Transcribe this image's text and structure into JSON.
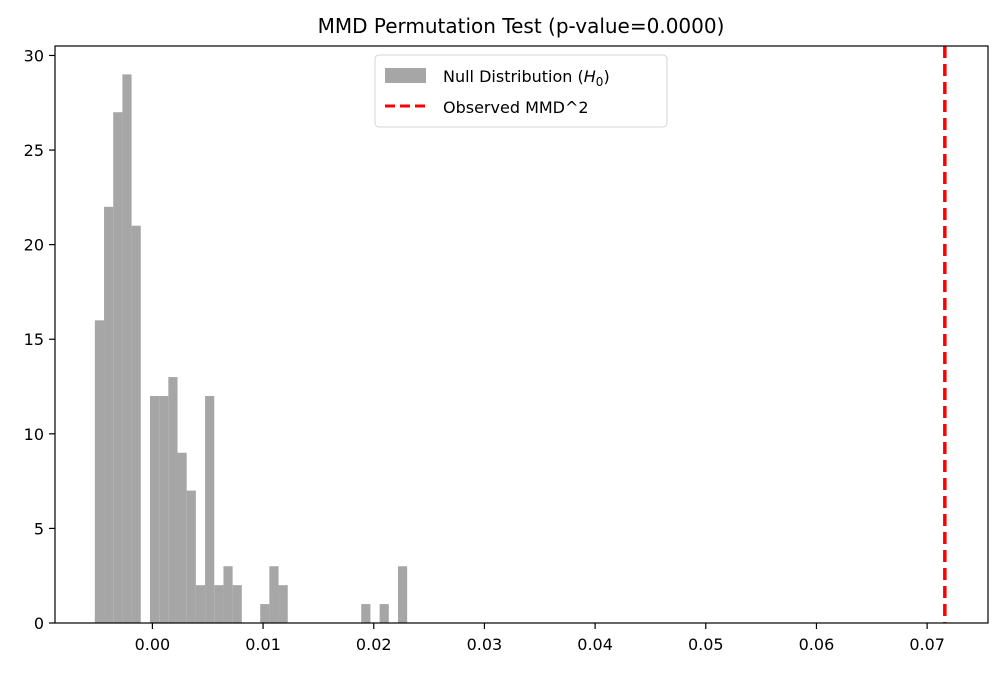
{
  "chart_data": {
    "type": "bar",
    "title": "MMD Permutation Test (p-value=0.0000)",
    "xlabel": "",
    "ylabel": "",
    "xlim": [
      -0.0088,
      0.0755
    ],
    "ylim": [
      0,
      30.5
    ],
    "xticks": [
      0.0,
      0.01,
      0.02,
      0.03,
      0.04,
      0.05,
      0.06,
      0.07
    ],
    "xtick_labels": [
      "0.00",
      "0.01",
      "0.02",
      "0.03",
      "0.04",
      "0.05",
      "0.06",
      "0.07"
    ],
    "yticks": [
      0,
      5,
      10,
      15,
      20,
      25,
      30
    ],
    "ytick_labels": [
      "0",
      "5",
      "10",
      "15",
      "20",
      "25",
      "30"
    ],
    "bin_start": -0.0052,
    "bin_width": 0.00083,
    "histogram_counts": [
      16,
      22,
      27,
      29,
      21,
      0,
      12,
      12,
      13,
      9,
      7,
      2,
      12,
      2,
      3,
      2,
      0,
      0,
      1,
      3,
      2,
      0,
      0,
      0,
      0,
      0,
      0,
      0,
      0,
      1,
      0,
      1,
      0,
      3
    ],
    "histogram_color": "#a6a6a6",
    "observed_value": 0.0716,
    "observed_color": "#ff0000",
    "legend": {
      "position": "upper center",
      "null_label": "Null Distribution (",
      "null_symbol": "H",
      "null_subscript": "0",
      "null_label_end": ")",
      "observed_label": "Observed MMD^2"
    },
    "grid": false
  }
}
